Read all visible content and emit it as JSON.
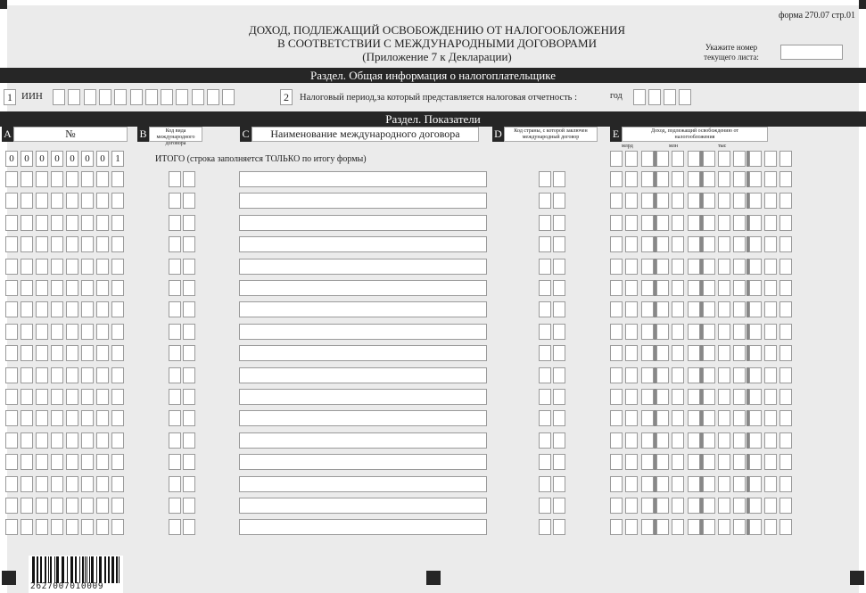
{
  "form_id": "форма 270.07  стр.01",
  "title": [
    "ДОХОД, ПОДЛЕЖАЩИЙ ОСВОБОЖДЕНИЮ ОТ НАЛОГООБЛОЖЕНИЯ",
    "В СООТВЕТСТВИИ С МЕЖДУНАРОДНЫМИ ДОГОВОРАМИ",
    "(Приложение 7 к Декларации)"
  ],
  "sheet_number": {
    "label": [
      "Укажите номер",
      "текущего листа:"
    ],
    "value": ""
  },
  "section1": {
    "title": "Раздел. Общая информация о налогоплательщике",
    "f1_num": "1",
    "f1_label": "ИИН",
    "f2_num": "2",
    "f2_label": "Налоговый период,за который представляется налоговая отчетность :",
    "year_label": "год"
  },
  "section2": {
    "title": "Раздел. Показатели",
    "col_a": {
      "letter": "A",
      "label": "№"
    },
    "col_b": {
      "letter": "B",
      "label": "Код вида международного договора"
    },
    "col_c": {
      "letter": "C",
      "label": "Наименование международного договора"
    },
    "col_d": {
      "letter": "D",
      "label": "Код страны, с которой заключен международный договор"
    },
    "col_e": {
      "letter": "E",
      "label": "Доход, подлежащий освобождению от налогообложения",
      "units": [
        "млрд",
        "млн",
        "тыс"
      ]
    },
    "total_number": [
      "0",
      "0",
      "0",
      "0",
      "0",
      "0",
      "0",
      "1"
    ],
    "total_label": "ИТОГО (строка заполняется ТОЛЬКО по итогу формы)",
    "row_count": 17
  },
  "barcode": "2627007010009"
}
